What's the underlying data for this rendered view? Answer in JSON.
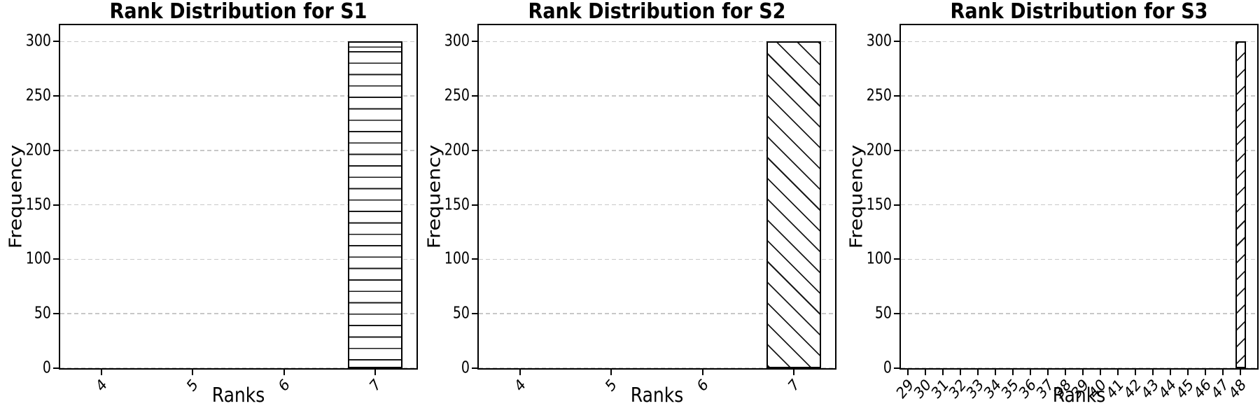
{
  "colors": {
    "bar_fill": "#ffffff",
    "bar_edge": "#000000",
    "hatch": "#1a1a1a",
    "grid": "#c8c8c8",
    "text": "#000000"
  },
  "chart_data": [
    {
      "type": "bar",
      "title": "Rank Distribution for S1",
      "xlabel": "Ranks",
      "ylabel": "Frequency",
      "categories": [
        4,
        5,
        6,
        7
      ],
      "values": [
        0,
        0,
        0,
        300
      ],
      "yticks": [
        0,
        50,
        100,
        150,
        200,
        250,
        300
      ],
      "ylim": [
        0,
        315
      ],
      "xlim": [
        3.55,
        7.45
      ],
      "bar_width": 0.6,
      "hatch": "horizontal-lines",
      "grid": "dashed-horizontal",
      "legend": "none",
      "xtick_rotation": 45
    },
    {
      "type": "bar",
      "title": "Rank Distribution for S2",
      "xlabel": "Ranks",
      "ylabel": "Frequency",
      "categories": [
        4,
        5,
        6,
        7
      ],
      "values": [
        0,
        0,
        0,
        300
      ],
      "yticks": [
        0,
        50,
        100,
        150,
        200,
        250,
        300
      ],
      "ylim": [
        0,
        315
      ],
      "xlim": [
        3.55,
        7.45
      ],
      "bar_width": 0.6,
      "hatch": "backslash-diagonal",
      "grid": "dashed-horizontal",
      "legend": "none",
      "xtick_rotation": 45
    },
    {
      "type": "bar",
      "title": "Rank Distribution for S3",
      "xlabel": "Ranks",
      "ylabel": "Frequency",
      "categories": [
        29,
        30,
        31,
        32,
        33,
        34,
        35,
        36,
        37,
        38,
        39,
        40,
        41,
        42,
        43,
        44,
        45,
        46,
        47,
        48
      ],
      "values": [
        0,
        0,
        0,
        0,
        0,
        0,
        0,
        0,
        0,
        0,
        0,
        0,
        0,
        0,
        0,
        0,
        0,
        0,
        0,
        300
      ],
      "yticks": [
        0,
        50,
        100,
        150,
        200,
        250,
        300
      ],
      "ylim": [
        0,
        315
      ],
      "xlim": [
        28.6,
        48.95
      ],
      "bar_width": 0.6,
      "hatch": "slash-diagonal",
      "grid": "dashed-horizontal",
      "legend": "none",
      "xtick_rotation": 45
    }
  ]
}
